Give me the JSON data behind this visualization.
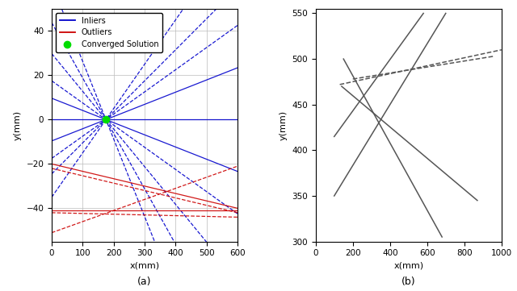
{
  "subplot_a": {
    "xlim": [
      0,
      600
    ],
    "ylim": [
      -55,
      50
    ],
    "xlabel": "x(mm)",
    "ylabel": "y(mm)",
    "label": "(a)",
    "converged_point": [
      175,
      0
    ],
    "inlier_color": "#0000cc",
    "outlier_color": "#cc0000",
    "converged_color": "#00dd00",
    "inlier_slopes_styles": [
      [
        0.0,
        "solid"
      ],
      [
        0.055,
        "solid"
      ],
      [
        0.1,
        "dashed"
      ],
      [
        0.14,
        "dashed"
      ],
      [
        0.2,
        "dashed"
      ],
      [
        -0.055,
        "solid"
      ],
      [
        -0.1,
        "dashed"
      ],
      [
        -0.17,
        "dashed"
      ],
      [
        -0.25,
        "dashed"
      ],
      [
        -0.35,
        "dashed"
      ]
    ],
    "outlier_lines": [
      [
        0,
        600,
        -20,
        -40,
        "solid"
      ],
      [
        0,
        600,
        -41,
        -41,
        "solid"
      ],
      [
        0,
        600,
        -51,
        -21,
        "dashed"
      ],
      [
        0,
        600,
        -22,
        -42,
        "dashed"
      ],
      [
        0,
        600,
        -42,
        -44,
        "dashed"
      ]
    ]
  },
  "subplot_b": {
    "xlim": [
      0,
      1000
    ],
    "ylim": [
      300,
      555
    ],
    "xlabel": "x(mm)",
    "ylabel": "y(mm)",
    "label": "(b)",
    "line_color": "#555555",
    "lines": [
      [
        100,
        700,
        350,
        550,
        "solid"
      ],
      [
        100,
        580,
        415,
        550,
        "solid"
      ],
      [
        150,
        680,
        500,
        305,
        "solid"
      ],
      [
        140,
        870,
        470,
        345,
        "solid"
      ],
      [
        130,
        1000,
        472,
        510,
        "dashed"
      ],
      [
        200,
        960,
        478,
        503,
        "dashed"
      ]
    ]
  },
  "bg_color": "#ffffff"
}
